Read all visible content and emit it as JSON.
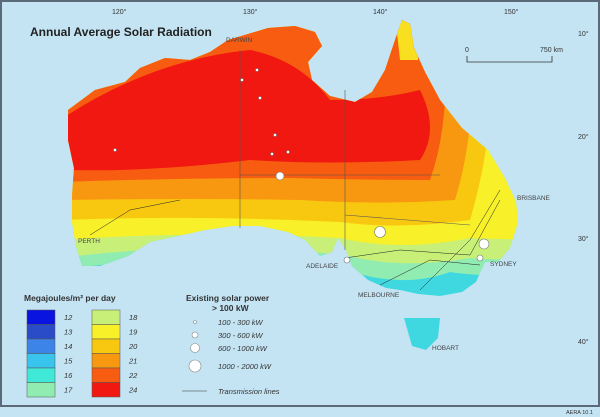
{
  "title": "Annual Average Solar Radiation",
  "longitude_labels": [
    "120°",
    "130°",
    "140°",
    "150°"
  ],
  "latitude_labels": [
    "10°",
    "20°",
    "30°",
    "40°"
  ],
  "cities": [
    "DARWIN",
    "BRISBANE",
    "PERTH",
    "ADELAIDE",
    "SYDNEY",
    "MELBOURNE",
    "HOBART"
  ],
  "scale": {
    "start": "0",
    "end": "750 km"
  },
  "legend_radiation": {
    "title": "Megajoules/m² per day",
    "items": [
      {
        "label": "12",
        "color": "#0a14e0"
      },
      {
        "label": "13",
        "color": "#2a4cc8"
      },
      {
        "label": "14",
        "color": "#3c84e8"
      },
      {
        "label": "15",
        "color": "#38c4ec"
      },
      {
        "label": "16",
        "color": "#40e8d8"
      },
      {
        "label": "17",
        "color": "#90ecb0"
      },
      {
        "label": "18",
        "color": "#c8f078"
      },
      {
        "label": "19",
        "color": "#f8f028"
      },
      {
        "label": "20",
        "color": "#f8c810"
      },
      {
        "label": "21",
        "color": "#f89810"
      },
      {
        "label": "22",
        "color": "#f85c10"
      },
      {
        "label": "24",
        "color": "#f01810"
      }
    ]
  },
  "legend_solar": {
    "title": "Existing solar power",
    "subtitle": "> 100 kW",
    "items": [
      "100 - 300 kW",
      "300 - 600 kW",
      "600 - 1000 kW",
      "1000 - 2000 kW"
    ],
    "transmission": "Transmission lines"
  },
  "footer": "AERA 10.1",
  "colors": {
    "sea": "#c4e4f4",
    "frame": "#5a6a78"
  }
}
